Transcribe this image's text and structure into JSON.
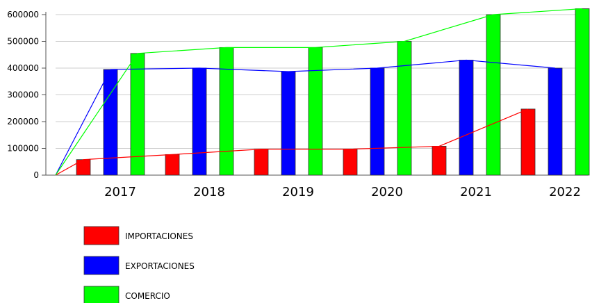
{
  "chart_data": {
    "type": "bar",
    "categories": [
      "2017",
      "2018",
      "2019",
      "2020",
      "2021",
      "2022"
    ],
    "series": [
      {
        "name": "IMPORTACIONES",
        "color": "#ff0000",
        "values": [
          58000,
          77000,
          97000,
          97000,
          108000,
          247000
        ]
      },
      {
        "name": "EXPORTACIONES",
        "color": "#0000ff",
        "values": [
          395000,
          400000,
          387000,
          400000,
          430000,
          400000
        ]
      },
      {
        "name": "COMERCIO",
        "color": "#00ff00",
        "values": [
          455000,
          477000,
          477000,
          500000,
          600000,
          622000
        ]
      }
    ],
    "overlay_lines": "each series also drawn as a connecting line starting from 0 at the origin",
    "ylim": [
      0,
      600000
    ],
    "yticks": [
      "0",
      "100000",
      "200000",
      "300000",
      "400000",
      "500000",
      "600000"
    ],
    "grid": true,
    "legend_position": "bottom-left"
  }
}
